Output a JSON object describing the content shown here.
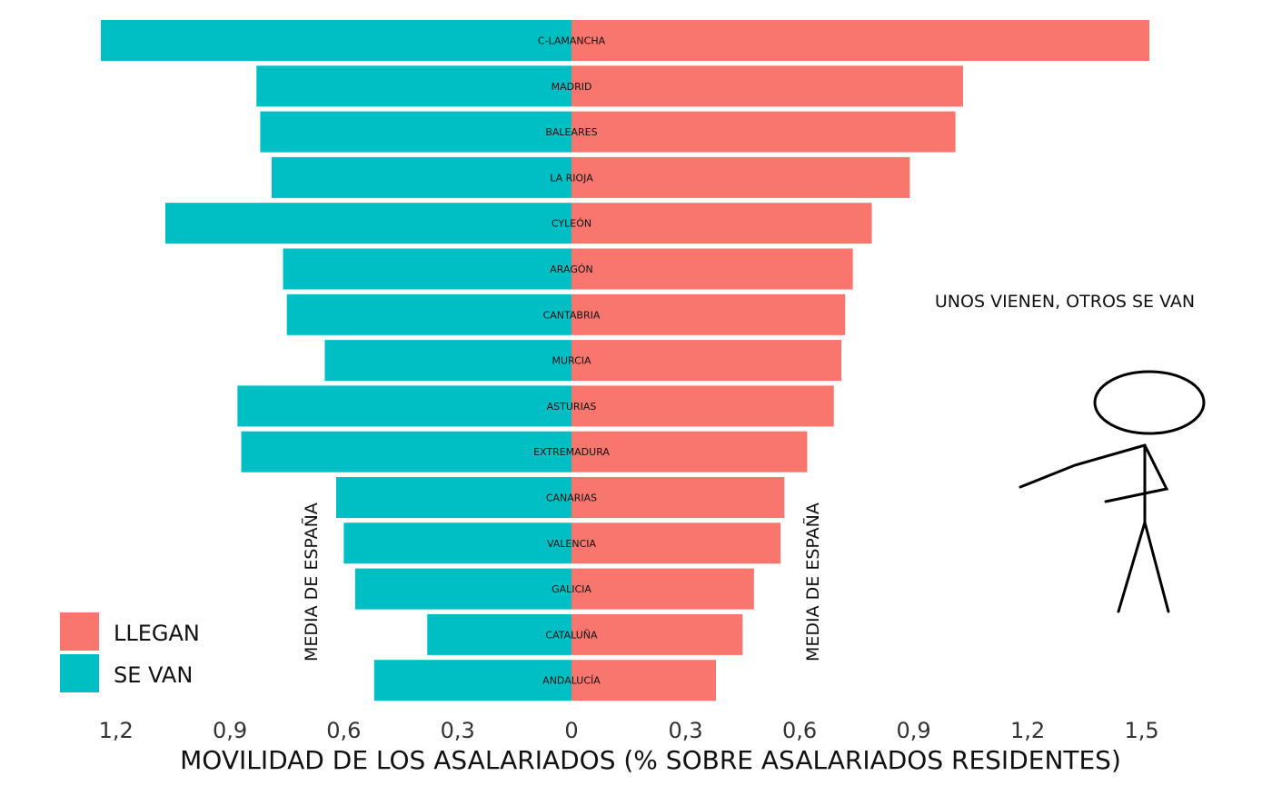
{
  "chart_data": {
    "type": "bar",
    "orientation": "horizontal-diverging",
    "title": "",
    "xlabel": "MOVILIDAD DE LOS ASALARIADOS (% SOBRE ASALARIADOS RESIDENTES)",
    "categories": [
      "C-LAMANCHA",
      "MADRID",
      "BALEARES",
      "LA RIOJA",
      "CYLEÓN",
      "ARAGÓN",
      "CANTABRIA",
      "MURCIA",
      "ASTURIAS",
      "EXTREMADURA",
      "CANARIAS",
      "VALENCIA",
      "GALICIA",
      "CATALUÑA",
      "ANDALUCÍA"
    ],
    "series": [
      {
        "name": "LLEGAN",
        "color": "#F8766D",
        "side": "right",
        "values": [
          1.52,
          1.03,
          1.01,
          0.89,
          0.79,
          0.74,
          0.72,
          0.71,
          0.69,
          0.62,
          0.56,
          0.55,
          0.48,
          0.45,
          0.38
        ]
      },
      {
        "name": "SE VAN",
        "color": "#00BFC4",
        "side": "left",
        "values": [
          1.24,
          0.83,
          0.82,
          0.79,
          1.07,
          0.76,
          0.75,
          0.65,
          0.88,
          0.87,
          0.62,
          0.6,
          0.57,
          0.38,
          0.52
        ]
      }
    ],
    "xlim_left": [
      0,
      1.24
    ],
    "xlim_right": [
      0,
      1.52
    ],
    "ticks_left": [
      1.2,
      0.9,
      0.6,
      0.3
    ],
    "ticks_left_labels": [
      "1,2",
      "0,9",
      "0,6",
      "0,3"
    ],
    "ticks_right": [
      0,
      0.3,
      0.6,
      0.9,
      1.2,
      1.5
    ],
    "ticks_right_labels": [
      "0",
      "0,3",
      "0,6",
      "0,9",
      "1,2",
      "1,5"
    ],
    "legend": {
      "position": "bottom-left",
      "entries": [
        "LLEGAN",
        "SE VAN"
      ]
    },
    "reference_lines": [
      {
        "side": "left",
        "value": 0.67,
        "label": "MEDIA DE ESPAÑA"
      },
      {
        "side": "right",
        "value": 0.65,
        "label": "MEDIA DE ESPAÑA"
      }
    ],
    "annotation": "UNOS VIENEN, OTROS SE VAN"
  }
}
